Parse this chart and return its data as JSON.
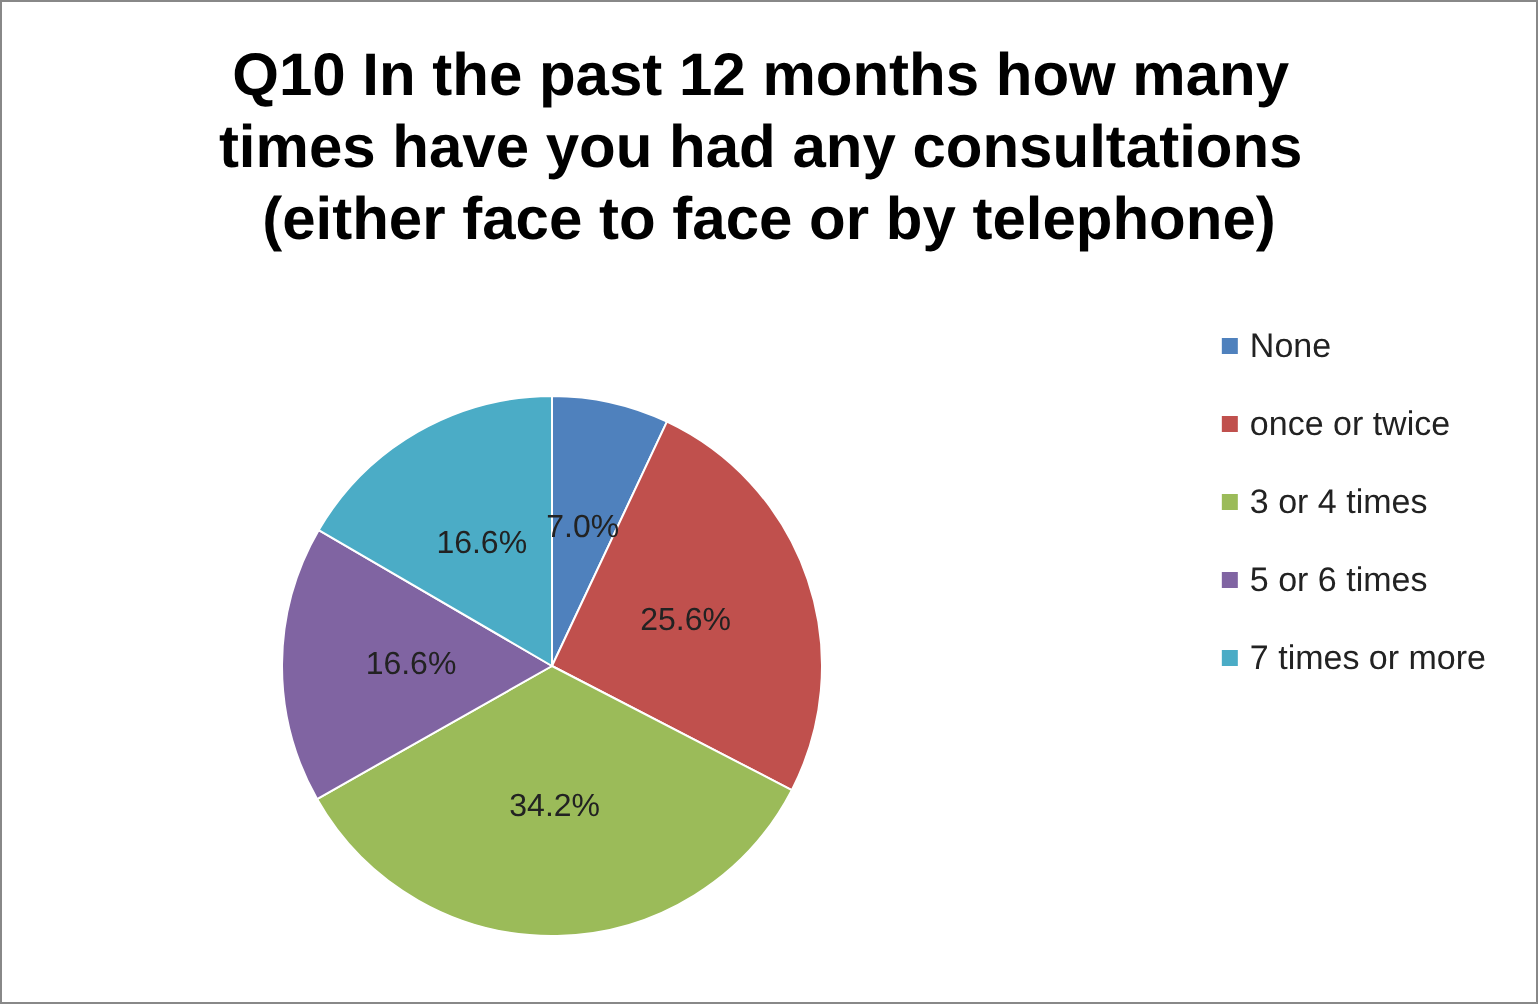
{
  "chart_data": {
    "type": "pie",
    "title": "Q10 In the past 12 months how many times have you had any consultations (either face to face or by telephone)",
    "categories": [
      "None",
      "once or twice",
      "3 or 4 times",
      "5 or 6 times",
      "7 times or more"
    ],
    "values": [
      7.0,
      25.6,
      34.2,
      16.6,
      16.6
    ],
    "colors": [
      "#4f81bd",
      "#c0504d",
      "#9bbb59",
      "#8064a2",
      "#4bacc6"
    ],
    "value_labels": [
      "7.0%",
      "25.6%",
      "34.2%",
      "16.6%",
      "16.6%"
    ],
    "legend": "right"
  }
}
